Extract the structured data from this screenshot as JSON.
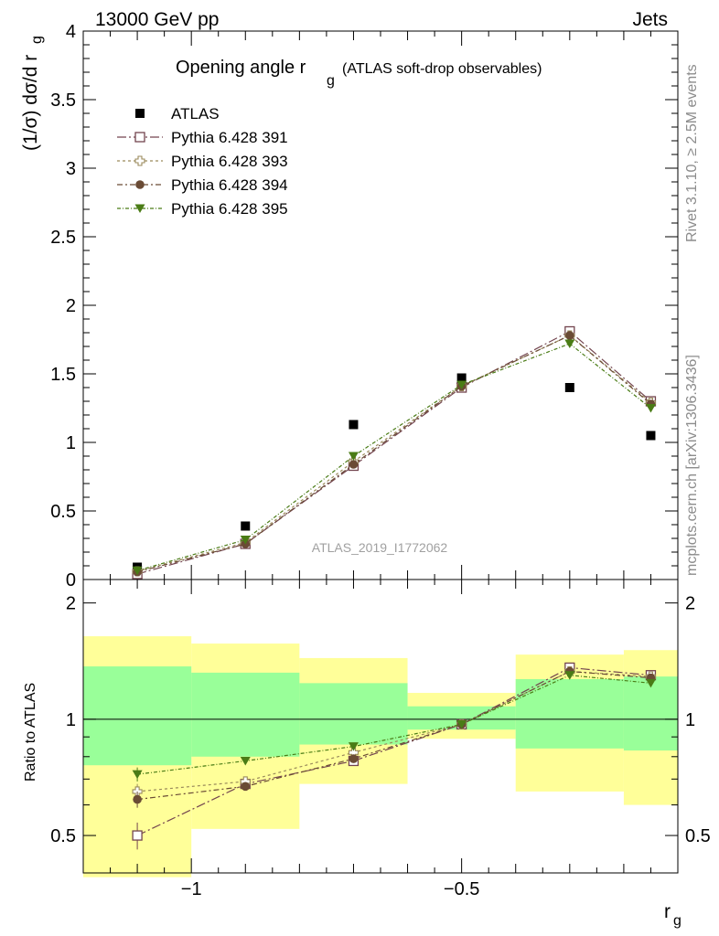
{
  "header": {
    "energy": "13000 GeV pp",
    "process": "Jets"
  },
  "side_labels": {
    "rivet": "Rivet 3.1.10, ≥ 2.5M events",
    "source": "mcplots.cern.ch [arXiv:1306.3436]"
  },
  "analysis_id": "ATLAS_2019_I1772062",
  "colors": {
    "atlas": "#000000",
    "p391": "#73454f",
    "p393": "#9a8a5b",
    "p394": "#6a4b35",
    "p395": "#4a7c16",
    "band_outer": "#ffff99",
    "band_inner": "#99ff99"
  },
  "chart_data": [
    {
      "type": "line",
      "title_main": "Opening angle r",
      "title_sub": "g",
      "title_extra": "(ATLAS soft-drop observables)",
      "ylabel_main": "(1/σ) dσ/d r",
      "ylabel_sub": "g",
      "ylim": [
        0,
        4
      ],
      "yticks": [
        {
          "v": 0,
          "label": "0"
        },
        {
          "v": 0.5,
          "label": "0.5"
        },
        {
          "v": 1,
          "label": "1"
        },
        {
          "v": 1.5,
          "label": "1.5"
        },
        {
          "v": 2,
          "label": "2"
        },
        {
          "v": 2.5,
          "label": "2.5"
        },
        {
          "v": 3,
          "label": "3"
        },
        {
          "v": 3.5,
          "label": "3.5"
        },
        {
          "v": 4,
          "label": "4"
        }
      ],
      "xlim": [
        -1.2,
        -0.1
      ],
      "x": [
        -1.1,
        -0.9,
        -0.7,
        -0.5,
        -0.3,
        -0.15
      ],
      "series": [
        {
          "name": "ATLAS",
          "key": "atlas",
          "marker": "filled-square",
          "line": false,
          "values": [
            0.09,
            0.39,
            1.13,
            1.47,
            1.4,
            1.05
          ]
        },
        {
          "name": "Pythia 6.428 391",
          "key": "p391",
          "marker": "open-square",
          "line": true,
          "dash": "10,3,2,3",
          "values": [
            0.04,
            0.26,
            0.83,
            1.4,
            1.81,
            1.3
          ]
        },
        {
          "name": "Pythia 6.428 393",
          "key": "p393",
          "marker": "open-cross",
          "line": true,
          "dash": "3,3",
          "values": [
            0.06,
            0.27,
            0.86,
            1.41,
            1.78,
            1.29
          ]
        },
        {
          "name": "Pythia 6.428 394",
          "key": "p394",
          "marker": "filled-circle",
          "line": true,
          "dash": "6,3,2,3",
          "values": [
            0.055,
            0.26,
            0.84,
            1.41,
            1.78,
            1.28
          ]
        },
        {
          "name": "Pythia 6.428 395",
          "key": "p395",
          "marker": "filled-triangle-down",
          "line": true,
          "dash": "4,2,1,2",
          "values": [
            0.065,
            0.29,
            0.9,
            1.42,
            1.72,
            1.25
          ]
        }
      ]
    },
    {
      "type": "line",
      "ylabel": "Ratio to ATLAS",
      "xlabel_main": "r",
      "xlabel_sub": "g",
      "log_y": true,
      "ylim": [
        0.4,
        2.3
      ],
      "yticks": [
        {
          "v": 0.5,
          "label": "0.5"
        },
        {
          "v": 1,
          "label": "1"
        },
        {
          "v": 2,
          "label": "2"
        }
      ],
      "xlim": [
        -1.2,
        -0.1
      ],
      "xticks": [
        {
          "v": -1,
          "label": "−1"
        },
        {
          "v": -0.5,
          "label": "−0.5"
        }
      ],
      "bands": {
        "edges": [
          -1.2,
          -1.0,
          -0.8,
          -0.6,
          -0.4,
          -0.2,
          -0.1
        ],
        "outer_low": [
          0.39,
          0.52,
          0.68,
          0.89,
          0.65,
          0.6
        ],
        "outer_high": [
          1.64,
          1.57,
          1.44,
          1.17,
          1.47,
          1.51
        ],
        "inner_low": [
          0.76,
          0.8,
          0.86,
          0.94,
          0.84,
          0.83
        ],
        "inner_high": [
          1.37,
          1.32,
          1.24,
          1.08,
          1.27,
          1.29
        ]
      },
      "x": [
        -1.1,
        -0.9,
        -0.7,
        -0.5,
        -0.3,
        -0.15
      ],
      "series": [
        {
          "name": "Pythia 6.428 391",
          "key": "p391",
          "marker": "open-square",
          "dash": "10,3,2,3",
          "values": [
            0.5,
            0.68,
            0.78,
            0.97,
            1.36,
            1.3
          ],
          "errors": [
            0.04,
            0.01,
            0.01,
            0.01,
            0.01,
            0.01
          ]
        },
        {
          "name": "Pythia 6.428 393",
          "key": "p393",
          "marker": "open-cross",
          "dash": "3,3",
          "values": [
            0.65,
            0.69,
            0.82,
            0.97,
            1.33,
            1.29
          ],
          "errors": [
            0.03,
            0.01,
            0.01,
            0.01,
            0.01,
            0.01
          ]
        },
        {
          "name": "Pythia 6.428 394",
          "key": "p394",
          "marker": "filled-circle",
          "dash": "6,3,2,3",
          "values": [
            0.62,
            0.67,
            0.79,
            0.97,
            1.33,
            1.28
          ],
          "errors": [
            0.03,
            0.01,
            0.01,
            0.01,
            0.01,
            0.01
          ]
        },
        {
          "name": "Pythia 6.428 395",
          "key": "p395",
          "marker": "filled-triangle-down",
          "dash": "4,2,1,2",
          "values": [
            0.72,
            0.78,
            0.85,
            0.97,
            1.3,
            1.24
          ],
          "errors": [
            0.03,
            0.01,
            0.01,
            0.01,
            0.01,
            0.01
          ]
        }
      ]
    }
  ]
}
